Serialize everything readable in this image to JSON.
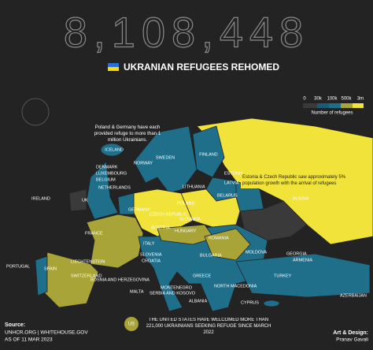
{
  "header": {
    "total": "8,108,448",
    "title": "UKRANIAN REFUGEES REHOMED"
  },
  "legend": {
    "labels": [
      "0",
      "30k",
      "100k",
      "500k",
      "3m"
    ],
    "title": "Number of refugees"
  },
  "annotations": [
    "Poland & Germany have each provided refuge to more than 1 million Ukrainians.",
    "Estonia & Czech Republic saw approximately 5% population growth with the arrival of refugees"
  ],
  "countries": [
    "ICELAND",
    "NORWAY",
    "SWEDEN",
    "FINLAND",
    "ESTONIA",
    "LATVIA",
    "LITHUANIA",
    "DENMARK",
    "LUXEMBOURG",
    "BELGIUM",
    "NETHERLANDS",
    "IRELAND",
    "UK",
    "GERMANY",
    "POLAND",
    "BELARUS",
    "RUSSIA",
    "CZECH REPUBLIC",
    "SLOVAKIA",
    "AUSTRIA",
    "HUNGARY",
    "FRANCE",
    "ROMANIA",
    "MOLDOVA",
    "LIECHTENSTEIN",
    "SLOVENIA",
    "CROATIA",
    "SWITZERLAND",
    "ITALY",
    "BULGARIA",
    "GEORGIA",
    "ARMENIA",
    "PORTUGAL",
    "SPAIN",
    "BOSNIA AND HERZEGOVINA",
    "SERBIA AND KOSOVO",
    "MONTENEGRO",
    "GREECE",
    "NORTH MACEDONIA",
    "TURKEY",
    "MALTA",
    "ALBANIA",
    "CYPRUS",
    "AZERBAIJAN"
  ],
  "footer": {
    "source_label": "Source:",
    "source": "UNHCR.ORG | WHITEHOUSE.GOV",
    "date": "AS OF 11 MAR 2023",
    "us_badge": "US",
    "us_note": "THE UNITED STATES HAVE WELCOMED MORE THAN 221,000 UKRAINIANS SEEKING REFUGE SINCE MARCH 2022",
    "credit_label": "Art & Design:",
    "credit": "Pranav Gavali"
  }
}
